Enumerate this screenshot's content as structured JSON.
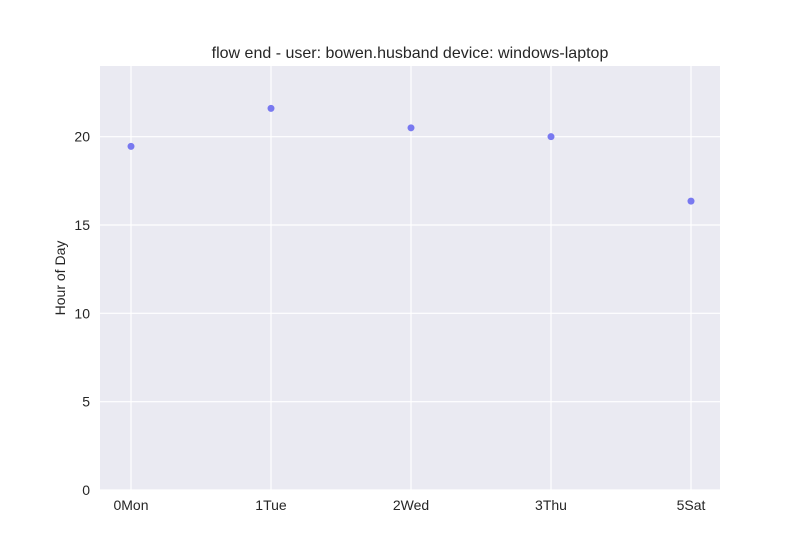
{
  "chart_data": {
    "type": "scatter",
    "title": "flow end - user: bowen.husband device: windows-laptop",
    "xlabel": "",
    "ylabel": "Hour of Day",
    "categories": [
      "0Mon",
      "1Tue",
      "2Wed",
      "3Thu",
      "5Sat"
    ],
    "series": [
      {
        "values": [
          19.45,
          21.6,
          20.5,
          20.0,
          16.35
        ]
      }
    ],
    "ylim": [
      0,
      24
    ],
    "yticks": [
      0,
      5,
      10,
      15,
      20
    ],
    "grid": true,
    "legend": "none",
    "colors": {
      "background": "#eaeaf2",
      "grid": "#ffffff",
      "point": "#6c6cf0"
    }
  }
}
